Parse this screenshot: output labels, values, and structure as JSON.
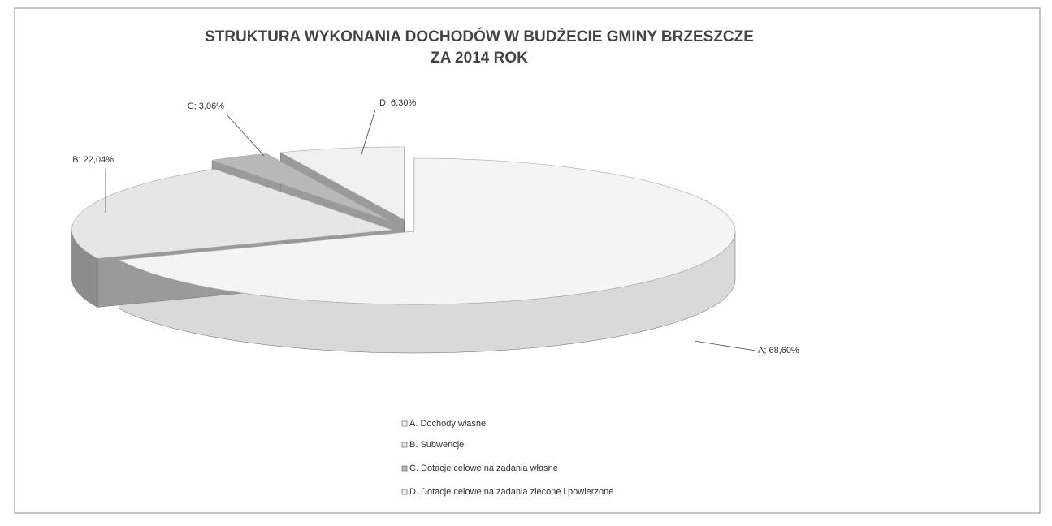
{
  "chart_data": {
    "type": "pie3d",
    "title": [
      "STRUKTURA WYKONANIA DOCHODÓW W BUDŻECIE GMINY BRZESZCZE",
      "ZA 2014 ROK"
    ],
    "categories": [
      "A. Dochody własne",
      "B. Subwencje",
      "C. Dotacje celowe na zadania własne",
      "D. Dotacje celowe na zadania zlecone i powierzone"
    ],
    "values": [
      68.6,
      22.04,
      3.06,
      6.3
    ],
    "value_labels": [
      "A; 68,60%",
      "B; 22,04%",
      "C; 3,06%",
      "D; 6,30%"
    ],
    "colors": [
      "#f4f4f4",
      "#e6e6e6",
      "#b8b8b8",
      "#f0f0f0"
    ],
    "legend": "bottom"
  }
}
